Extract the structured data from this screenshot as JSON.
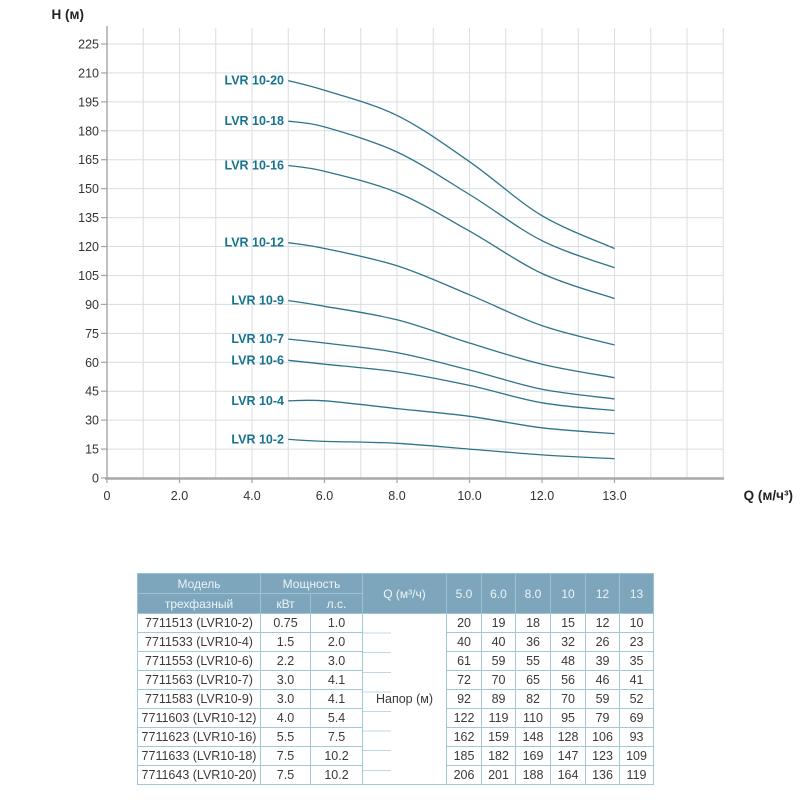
{
  "chart": {
    "y_axis_title": "H (м)",
    "x_axis_title": "Q (м/ч³)",
    "y_tick_step": 15,
    "y_ticks": [
      "0",
      "15",
      "30",
      "45",
      "60",
      "75",
      "90",
      "105",
      "120",
      "135",
      "150",
      "165",
      "180",
      "195",
      "210",
      "225"
    ],
    "x_ticks": [
      "0",
      "2.0",
      "4.0",
      "6.0",
      "8.0",
      "10.0",
      "12.0",
      "13.0"
    ],
    "colors": {
      "curve": "#2e7489",
      "curve_label": "#17738f",
      "grid": "#dadde1",
      "axis": "#9fa5ab",
      "x_axis": "#a8a8a8",
      "tick_text": "#333333"
    }
  },
  "chart_data": {
    "type": "line",
    "title": "",
    "xlabel": "Q (м/ч³)",
    "ylabel": "H (м)",
    "xlim": [
      0,
      13
    ],
    "ylim": [
      0,
      225
    ],
    "grid": true,
    "legend_position": "labels-at-curve-start",
    "x_tick_values": [
      0,
      2,
      4,
      6,
      8,
      10,
      12,
      13
    ],
    "x": [
      5.0,
      6.0,
      8.0,
      10,
      12,
      13
    ],
    "series": [
      {
        "name": "LVR 10-20",
        "values": [
          206,
          201,
          188,
          164,
          136,
          119
        ]
      },
      {
        "name": "LVR 10-18",
        "values": [
          185,
          182,
          169,
          147,
          123,
          109
        ]
      },
      {
        "name": "LVR 10-16",
        "values": [
          162,
          159,
          148,
          128,
          106,
          93
        ]
      },
      {
        "name": "LVR 10-12",
        "values": [
          122,
          119,
          110,
          95,
          79,
          69
        ]
      },
      {
        "name": "LVR 10-9",
        "values": [
          92,
          89,
          82,
          70,
          59,
          52
        ]
      },
      {
        "name": "LVR 10-7",
        "values": [
          72,
          70,
          65,
          56,
          46,
          41
        ]
      },
      {
        "name": "LVR 10-6",
        "values": [
          61,
          59,
          55,
          48,
          39,
          35
        ]
      },
      {
        "name": "LVR 10-4",
        "values": [
          40,
          40,
          36,
          32,
          26,
          23
        ]
      },
      {
        "name": "LVR 10-2",
        "values": [
          20,
          19,
          18,
          15,
          12,
          10
        ]
      }
    ]
  },
  "table": {
    "header": {
      "model_line1": "Модель",
      "model_line2": "трехфазный",
      "power": "Мощность",
      "power_kw": "кВт",
      "power_hp": "л.с.",
      "q": "Q (м³/ч)",
      "flow_columns": [
        "5.0",
        "6.0",
        "8.0",
        "10",
        "12",
        "13"
      ]
    },
    "napor_label": "Напор (м)",
    "rows": [
      {
        "model": "7711513 (LVR10-2)",
        "kw": "0.75",
        "hp": "1.0",
        "heads": [
          "20",
          "19",
          "18",
          "15",
          "12",
          "10"
        ]
      },
      {
        "model": "7711533 (LVR10-4)",
        "kw": "1.5",
        "hp": "2.0",
        "heads": [
          "40",
          "40",
          "36",
          "32",
          "26",
          "23"
        ]
      },
      {
        "model": "7711553 (LVR10-6)",
        "kw": "2.2",
        "hp": "3.0",
        "heads": [
          "61",
          "59",
          "55",
          "48",
          "39",
          "35"
        ]
      },
      {
        "model": "7711563 (LVR10-7)",
        "kw": "3.0",
        "hp": "4.1",
        "heads": [
          "72",
          "70",
          "65",
          "56",
          "46",
          "41"
        ]
      },
      {
        "model": "7711583 (LVR10-9)",
        "kw": "3.0",
        "hp": "4.1",
        "heads": [
          "92",
          "89",
          "82",
          "70",
          "59",
          "52"
        ]
      },
      {
        "model": "7711603 (LVR10-12)",
        "kw": "4.0",
        "hp": "5.4",
        "heads": [
          "122",
          "119",
          "110",
          "95",
          "79",
          "69"
        ]
      },
      {
        "model": "7711623 (LVR10-16)",
        "kw": "5.5",
        "hp": "7.5",
        "heads": [
          "162",
          "159",
          "148",
          "128",
          "106",
          "93"
        ]
      },
      {
        "model": "7711633 (LVR10-18)",
        "kw": "7.5",
        "hp": "10.2",
        "heads": [
          "185",
          "182",
          "169",
          "147",
          "123",
          "109"
        ]
      },
      {
        "model": "7711643 (LVR10-20)",
        "kw": "7.5",
        "hp": "10.2",
        "heads": [
          "206",
          "201",
          "188",
          "164",
          "136",
          "119"
        ]
      }
    ],
    "colors": {
      "header_bg": "#7da6bc",
      "header_text": "#ecf4f8",
      "border": "#a2c7d8",
      "text": "#3a3a3a"
    }
  }
}
